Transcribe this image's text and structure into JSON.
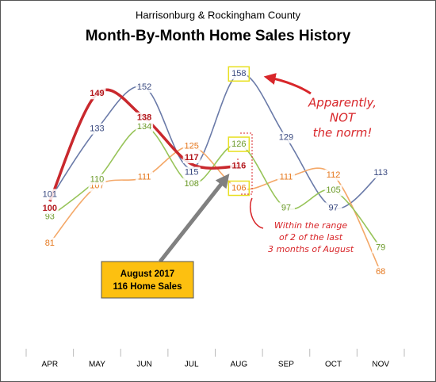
{
  "chart_data": {
    "type": "line",
    "title": "Month-By-Month Home Sales History",
    "subtitle": "Harrisonburg & Rockingham County",
    "categories": [
      "APR",
      "MAY",
      "JUN",
      "JUL",
      "AUG",
      "SEP",
      "OCT",
      "NOV"
    ],
    "series": [
      {
        "color": "#6a7aa8",
        "values": [
          101,
          133,
          152,
          115,
          158,
          129,
          97,
          113
        ]
      },
      {
        "color": "#f4a868",
        "values": [
          81,
          107,
          111,
          125,
          106,
          111,
          112,
          68
        ]
      },
      {
        "color": "#98c45a",
        "values": [
          93,
          110,
          134,
          108,
          126,
          97,
          105,
          79
        ]
      },
      {
        "color": "#c9282d",
        "values": [
          100,
          149,
          138,
          117,
          116,
          null,
          null,
          null
        ]
      }
    ],
    "ylim": [
      33,
      170
    ],
    "annotations": [
      {
        "lines": [
          "Apparently,",
          "NOT",
          "the norm!"
        ]
      },
      {
        "lines": [
          "Within the range",
          "of 2 of the last",
          "3 months of August"
        ]
      },
      {
        "lines": [
          "August 2017",
          "116 Home Sales"
        ]
      }
    ]
  }
}
